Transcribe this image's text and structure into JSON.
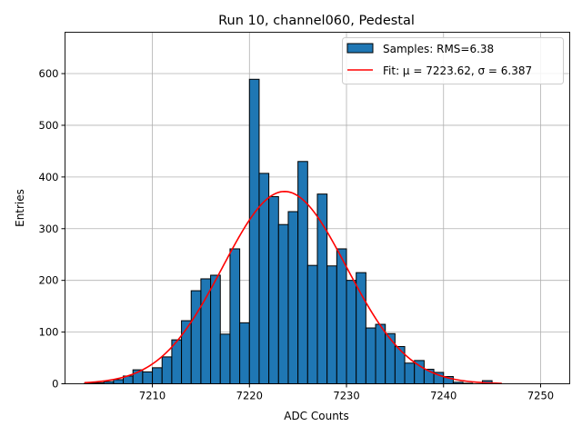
{
  "chart_data": {
    "type": "bar",
    "title": "Run 10, channel060, Pedestal",
    "xlabel": "ADC Counts",
    "ylabel": "Entries",
    "xlim": [
      7201,
      7253
    ],
    "ylim": [
      0,
      680
    ],
    "xticks": [
      7210,
      7220,
      7230,
      7240,
      7250
    ],
    "yticks": [
      0,
      100,
      200,
      300,
      400,
      500,
      600
    ],
    "grid": true,
    "legend_position": "top-right",
    "bin_width": 1,
    "bin_left_edges": [
      7203,
      7204,
      7205,
      7206,
      7207,
      7208,
      7209,
      7210,
      7211,
      7212,
      7213,
      7214,
      7215,
      7216,
      7217,
      7218,
      7219,
      7220,
      7221,
      7222,
      7223,
      7224,
      7225,
      7226,
      7227,
      7228,
      7229,
      7230,
      7231,
      7232,
      7233,
      7234,
      7235,
      7236,
      7237,
      7238,
      7239,
      7240,
      7241,
      7242,
      7243,
      7244,
      7245
    ],
    "values": [
      1,
      2,
      4,
      8,
      15,
      27,
      23,
      31,
      52,
      85,
      122,
      180,
      203,
      210,
      96,
      261,
      118,
      589,
      407,
      362,
      308,
      333,
      430,
      229,
      367,
      228,
      261,
      200,
      215,
      108,
      115,
      97,
      72,
      40,
      45,
      28,
      22,
      14,
      3,
      1,
      0,
      6,
      0
    ],
    "series": [
      {
        "name": "Samples: RMS=6.38",
        "kind": "histogram",
        "color": "#1f77b4",
        "edgecolor": "#000000"
      },
      {
        "name": "Fit: μ = 7223.62, σ = 6.387",
        "kind": "gaussian",
        "color": "#ff0000",
        "mu": 7223.62,
        "sigma": 6.387,
        "amplitude": 372,
        "x_range": [
          7203,
          7246
        ]
      }
    ]
  }
}
